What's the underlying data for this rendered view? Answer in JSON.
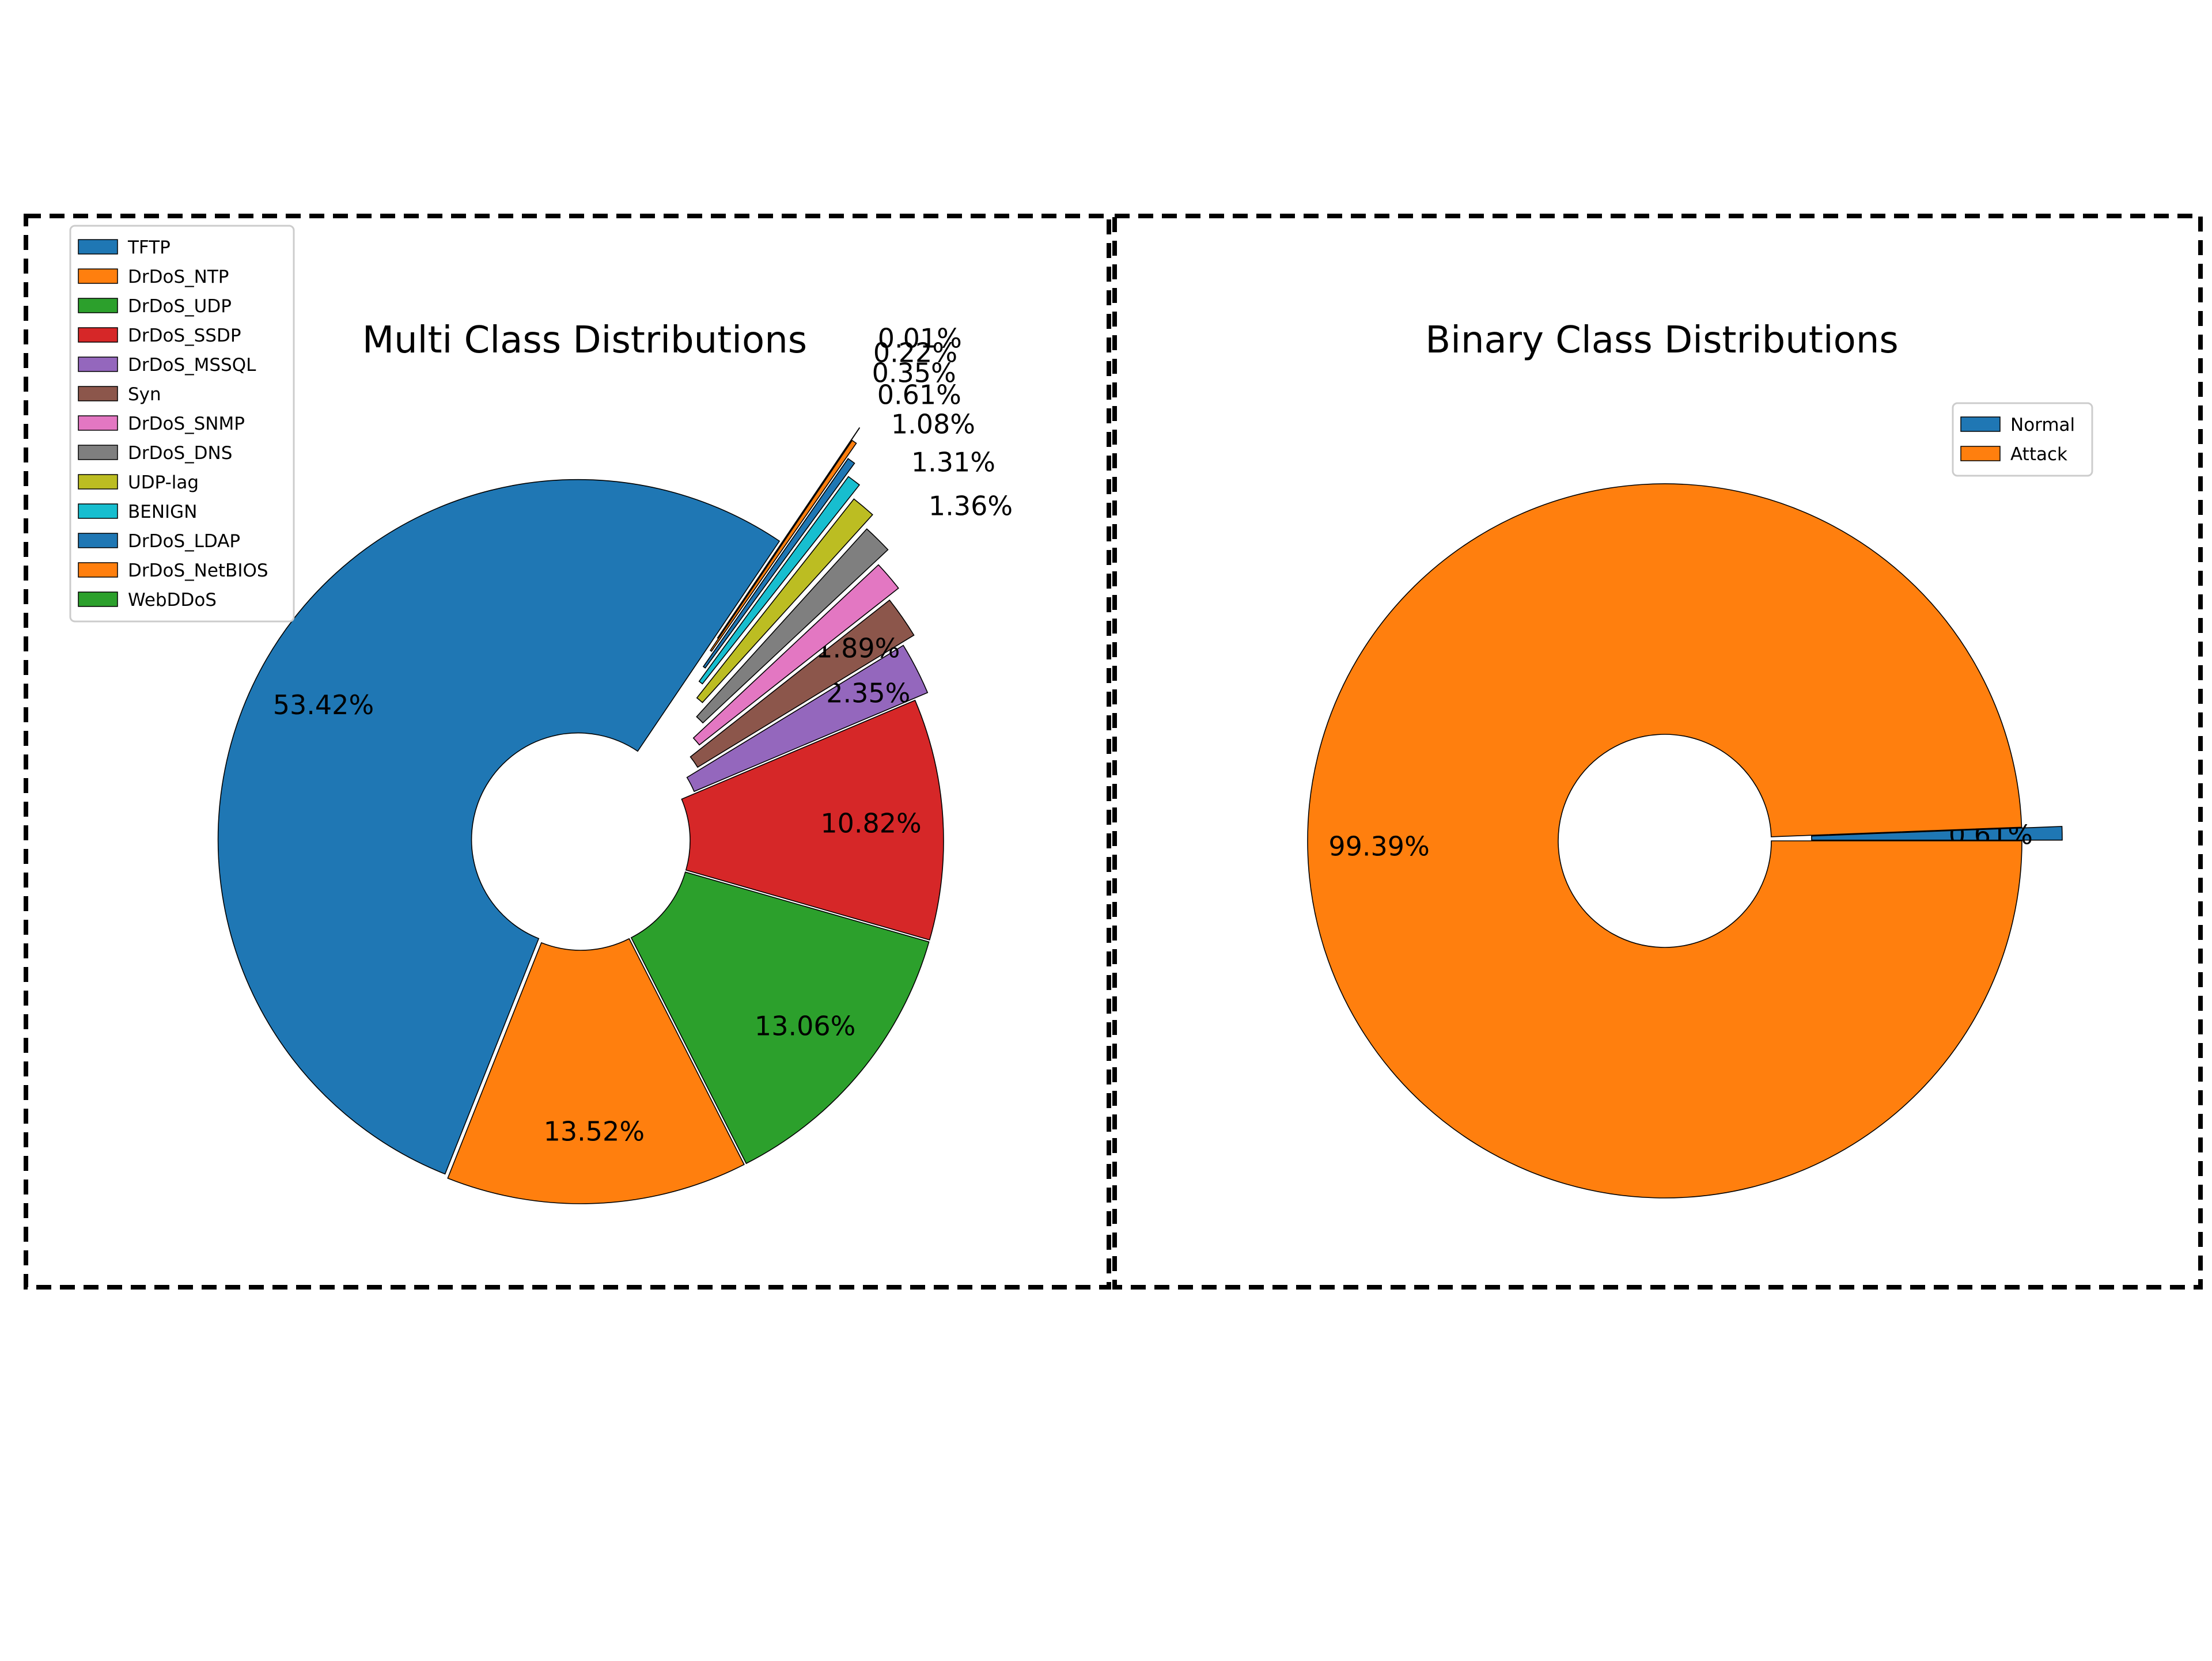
{
  "chart_data": [
    {
      "type": "pie",
      "title": "Multi Class Distributions",
      "donut": true,
      "legend_position": "top-left",
      "categories": [
        "TFTP",
        "DrDoS_NTP",
        "DrDoS_UDP",
        "DrDoS_SSDP",
        "DrDoS_MSSQL",
        "Syn",
        "DrDoS_SNMP",
        "DrDoS_DNS",
        "UDP-lag",
        "BENIGN",
        "DrDoS_LDAP",
        "DrDoS_NetBIOS",
        "WebDDoS"
      ],
      "values": [
        53.42,
        13.52,
        13.06,
        10.82,
        2.35,
        1.89,
        1.36,
        1.31,
        1.08,
        0.61,
        0.35,
        0.22,
        0.01
      ],
      "labels": [
        "53.42%",
        "13.52%",
        "13.06%",
        "10.82%",
        "2.35%",
        "1.89%",
        "1.36%",
        "1.31%",
        "1.08%",
        "0.61%",
        "0.35%",
        "0.22%",
        "0.01%"
      ],
      "colors": [
        "#1f77b4",
        "#ff7f0e",
        "#2ca02c",
        "#d62728",
        "#9467bd",
        "#8c564b",
        "#e377c2",
        "#7f7f7f",
        "#bcbd22",
        "#17becf",
        "#1f77b4",
        "#ff7f0e",
        "#2ca02c"
      ]
    },
    {
      "type": "pie",
      "title": "Binary Class Distributions",
      "donut": true,
      "legend_position": "top-right",
      "categories": [
        "Normal",
        "Attack"
      ],
      "values": [
        0.61,
        99.39
      ],
      "labels": [
        "0.61%",
        "99.39%"
      ],
      "colors": [
        "#1f77b4",
        "#ff7f0e"
      ]
    }
  ]
}
